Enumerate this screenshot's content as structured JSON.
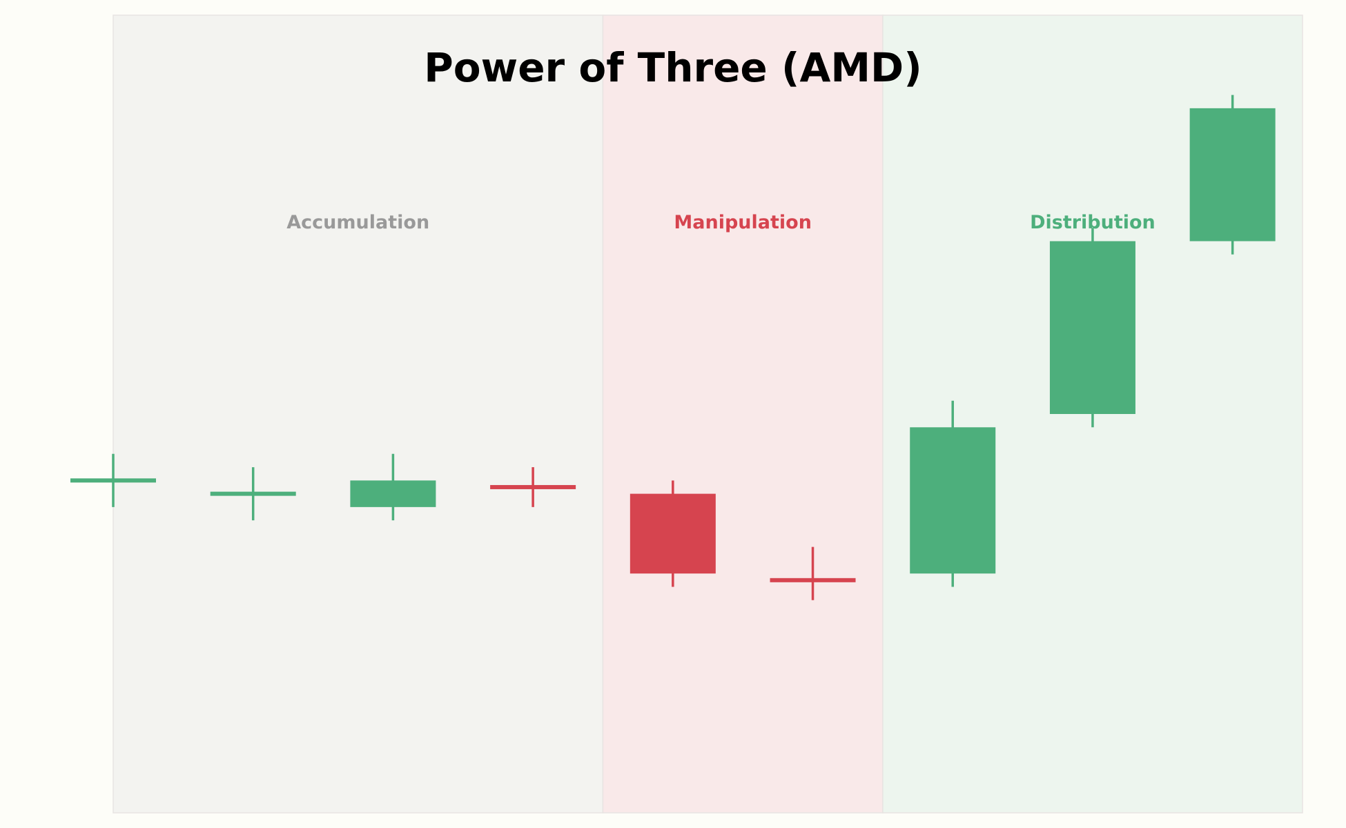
{
  "chart_data": {
    "type": "candlestick",
    "title": "Power of Three (AMD)",
    "xlim": [
      0,
      8.5
    ],
    "ylim": [
      94,
      106
    ],
    "grid": false,
    "phases": [
      {
        "name": "Accumulation",
        "x_start": 0,
        "x_end": 3.5,
        "color": "#999999",
        "fill": "#f3f3f0"
      },
      {
        "name": "Manipulation",
        "x_start": 3.5,
        "x_end": 5.5,
        "color": "#d6444f",
        "fill": "#f9e9e9"
      },
      {
        "name": "Distribution",
        "x_start": 5.5,
        "x_end": 8.5,
        "color": "#4daf7c",
        "fill": "#edf5ee"
      }
    ],
    "candles": [
      {
        "x": 0,
        "open": 99.0,
        "high": 99.4,
        "low": 98.6,
        "close": 99.0,
        "direction": "up"
      },
      {
        "x": 1,
        "open": 98.8,
        "high": 99.2,
        "low": 98.4,
        "close": 98.8,
        "direction": "up"
      },
      {
        "x": 2,
        "open": 98.6,
        "high": 99.4,
        "low": 98.4,
        "close": 99.0,
        "direction": "up"
      },
      {
        "x": 3,
        "open": 98.9,
        "high": 99.2,
        "low": 98.6,
        "close": 98.9,
        "direction": "down"
      },
      {
        "x": 4,
        "open": 98.8,
        "high": 99.0,
        "low": 97.4,
        "close": 97.6,
        "direction": "down"
      },
      {
        "x": 5,
        "open": 97.5,
        "high": 98.0,
        "low": 97.2,
        "close": 97.5,
        "direction": "down"
      },
      {
        "x": 6,
        "open": 97.6,
        "high": 100.2,
        "low": 97.4,
        "close": 99.8,
        "direction": "up"
      },
      {
        "x": 7,
        "open": 100.0,
        "high": 102.8,
        "low": 99.8,
        "close": 102.6,
        "direction": "up"
      },
      {
        "x": 8,
        "open": 102.6,
        "high": 104.8,
        "low": 102.4,
        "close": 104.6,
        "direction": "up"
      }
    ],
    "colors": {
      "up": "#4daf7c",
      "down": "#d6444f"
    }
  }
}
